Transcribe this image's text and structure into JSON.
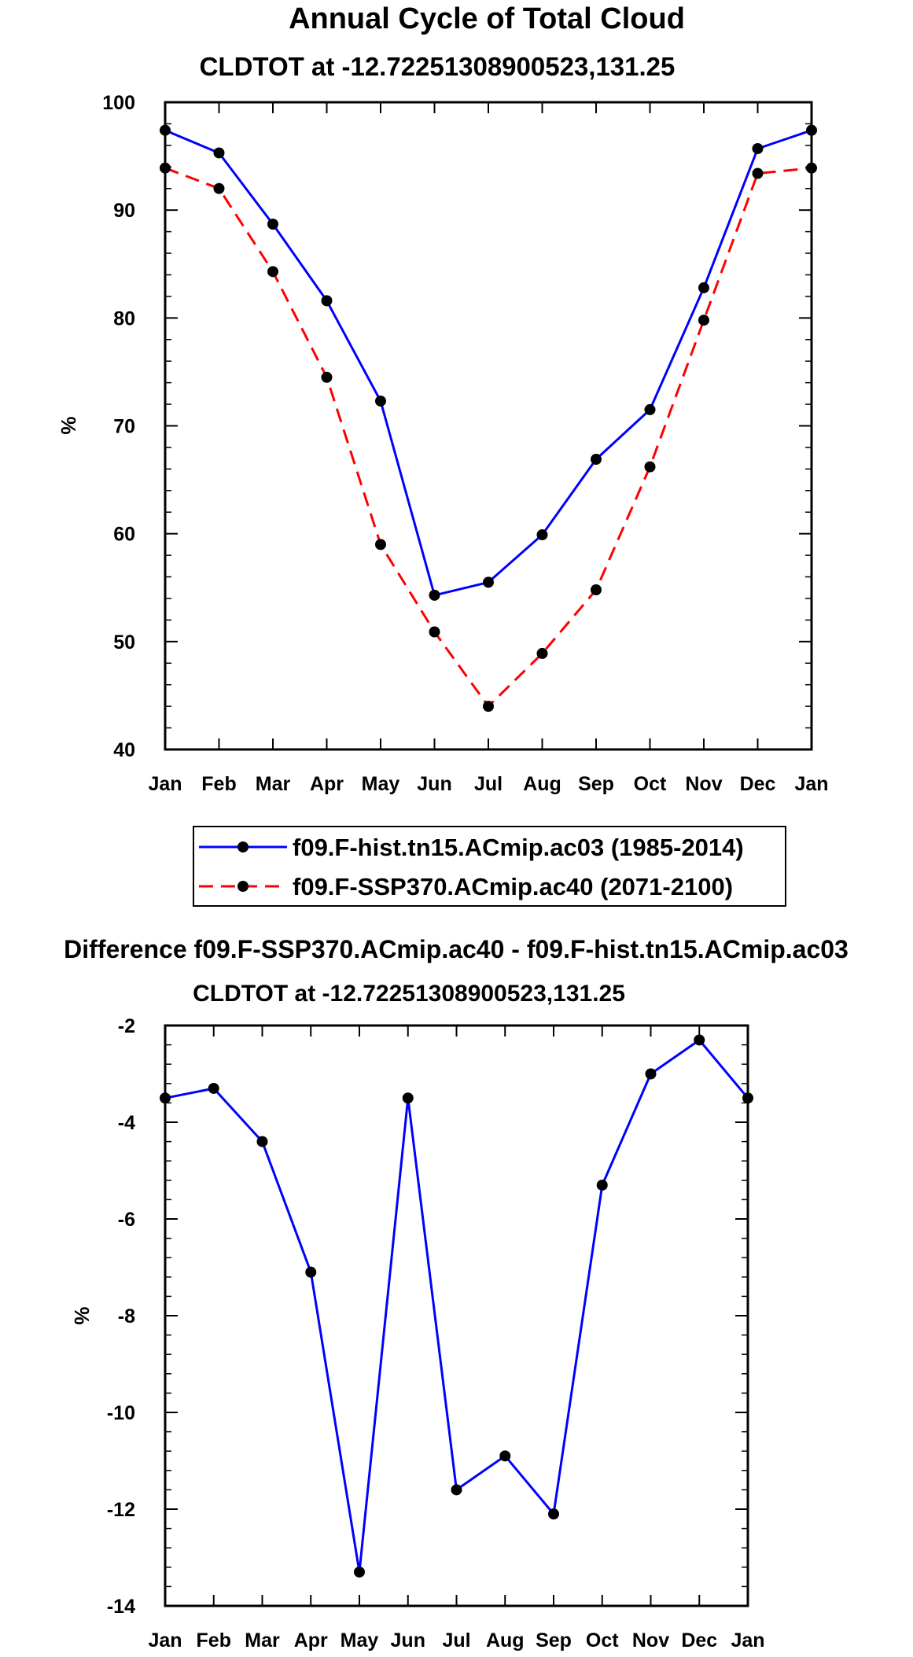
{
  "chart_data": [
    {
      "type": "line",
      "title": "Annual Cycle of Total Cloud",
      "subtitle": "CLDTOT at -12.72251308900523,131.25",
      "ylabel": "%",
      "xlabel": "",
      "ylim": [
        40,
        100
      ],
      "yticks": [
        "40",
        "50",
        "60",
        "70",
        "80",
        "90",
        "100"
      ],
      "categories": [
        "Jan",
        "Feb",
        "Mar",
        "Apr",
        "May",
        "Jun",
        "Jul",
        "Aug",
        "Sep",
        "Oct",
        "Nov",
        "Dec",
        "Jan"
      ],
      "series": [
        {
          "name": "f09.F-hist.tn15.ACmip.ac03 (1985-2014)",
          "color": "#0000ff",
          "style": "solid",
          "values": [
            97.4,
            95.3,
            88.7,
            81.6,
            72.3,
            54.3,
            55.5,
            59.9,
            66.9,
            71.5,
            82.8,
            95.7,
            97.4
          ]
        },
        {
          "name": "f09.F-SSP370.ACmip.ac40 (2071-2100)",
          "color": "#ff0000",
          "style": "dashed",
          "values": [
            93.9,
            92.0,
            84.3,
            74.5,
            59.0,
            50.9,
            44.0,
            48.9,
            54.8,
            66.2,
            79.8,
            93.4,
            93.9
          ]
        }
      ],
      "legend_position": "below"
    },
    {
      "type": "line",
      "title": "Difference f09.F-SSP370.ACmip.ac40 - f09.F-hist.tn15.ACmip.ac03",
      "subtitle": "CLDTOT at -12.72251308900523,131.25",
      "ylabel": "%",
      "xlabel": "",
      "ylim": [
        -14,
        -2
      ],
      "yticks": [
        "-14",
        "-12",
        "-10",
        "-8",
        "-6",
        "-4",
        "-2"
      ],
      "categories": [
        "Jan",
        "Feb",
        "Mar",
        "Apr",
        "May",
        "Jun",
        "Jul",
        "Aug",
        "Sep",
        "Oct",
        "Nov",
        "Dec",
        "Jan"
      ],
      "series": [
        {
          "name": "Difference",
          "color": "#0000ff",
          "style": "solid",
          "values": [
            -3.5,
            -3.3,
            -4.4,
            -7.1,
            -13.3,
            -3.5,
            -11.6,
            -10.9,
            -12.1,
            -5.3,
            -3.0,
            -2.3,
            -3.5
          ]
        }
      ]
    }
  ]
}
